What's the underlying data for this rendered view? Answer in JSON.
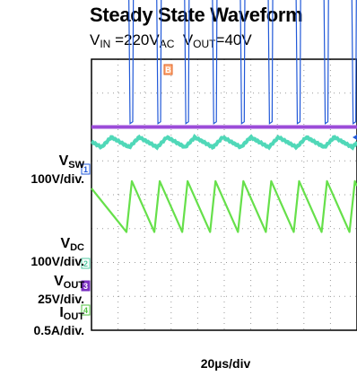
{
  "title": "Steady State Waveform",
  "subtitle": {
    "vin_main": "V",
    "vin_sub": "IN",
    "vin_value": " =220V",
    "vin_unit_sub": "AC",
    "vout_main": "V",
    "vout_sub": "OUT",
    "vout_value": "=40V"
  },
  "chart_data": {
    "type": "line",
    "title": "Steady State Waveform",
    "xlabel": "20µs/div",
    "ylabel": "",
    "grid": true,
    "x_divisions": 10,
    "y_divisions": 8,
    "switching_period_us": 21,
    "series": [
      {
        "name": "VSW",
        "marker": "1",
        "scale": "100V/div.",
        "color": "#2058d8",
        "waveform": "pulse",
        "off_level_div": 7.6,
        "on_level_div": 2.1
      },
      {
        "name": "VDC",
        "marker": "2",
        "scale": "100V/div.",
        "color": "#50d8b8",
        "waveform": "ripple",
        "level_div": 1.55,
        "ripple_div": 0.15
      },
      {
        "name": "VOUT",
        "marker": "3",
        "scale": "25V/div.",
        "color": "#9b4cd8",
        "waveform": "flat",
        "level_div": 2.0
      },
      {
        "name": "IOUT",
        "marker": "4",
        "scale": "0.5A/div.",
        "color": "#66e04a",
        "waveform": "sawtooth",
        "min_div": -1.1,
        "max_div": 0.4
      }
    ]
  },
  "labels": {
    "vsw_main": "V",
    "vsw_sub": "SW",
    "vsw_scale": "100V/div.",
    "vdc_main": "V",
    "vdc_sub": "DC",
    "vdc_scale": "100V/div.",
    "vout_main": "V",
    "vout_sub": "OUT",
    "vout_scale": "25V/div.",
    "iout_main": "I",
    "iout_sub": "OUT",
    "iout_scale": "0.5A/div."
  },
  "markers": {
    "ch1": "1",
    "ch2": "2",
    "ch3": "3",
    "ch4": "4",
    "trigger": "B"
  }
}
